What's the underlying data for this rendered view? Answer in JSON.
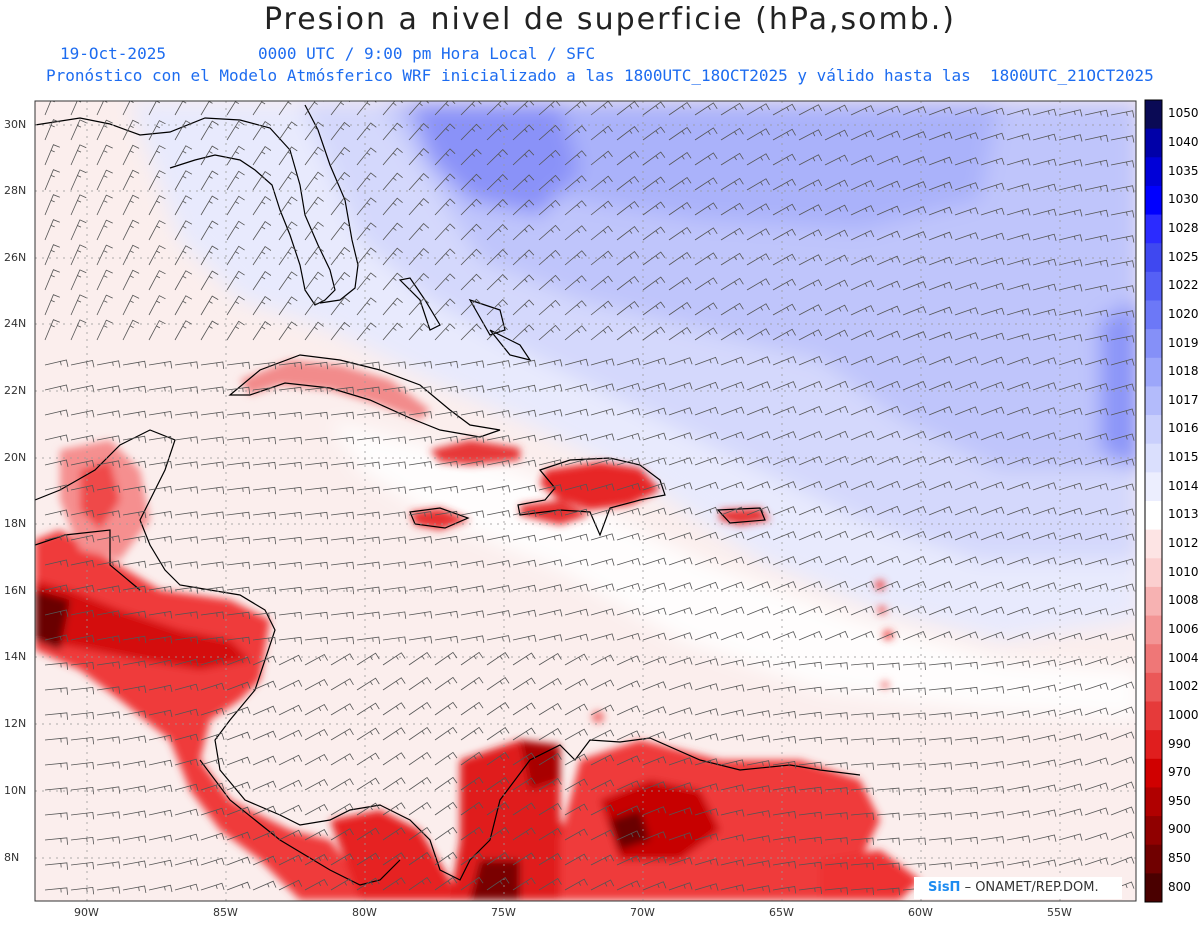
{
  "header": {
    "title": "Presion a nivel de superficie (hPa,somb.)",
    "date": "19-Oct-2025",
    "time": "0000 UTC / 9:00 pm Hora Local / SFC",
    "init_line": "Pronóstico con el Modelo Atmósferico WRF inicializado a las 1800UTC_18OCT2025 y válido hasta las  1800UTC_21OCT2025"
  },
  "map": {
    "lat_labels": [
      "30N",
      "28N",
      "26N",
      "24N",
      "22N",
      "20N",
      "18N",
      "16N",
      "14N",
      "12N",
      "10N",
      "8N"
    ],
    "lon_labels": [
      "90W",
      "85W",
      "80W",
      "75W",
      "70W",
      "65W",
      "60W",
      "55W"
    ],
    "colors": {
      "high": "#5a6ef5",
      "mid": "#e6e9fb",
      "neutral": "#fbeeed",
      "low": "#ee2222",
      "very_low": "#7a0000",
      "land_line": "#000000",
      "barb": "#555555"
    }
  },
  "colorbar": {
    "labels": [
      "1050",
      "1040",
      "1035",
      "1030",
      "1028",
      "1025",
      "1022",
      "1020",
      "1019",
      "1018",
      "1017",
      "1016",
      "1015",
      "1014",
      "1013",
      "1012",
      "1010",
      "1008",
      "1006",
      "1004",
      "1002",
      "1000",
      "990",
      "970",
      "950",
      "900",
      "850",
      "800"
    ],
    "colors": [
      "#0a0a55",
      "#0000a8",
      "#0000d8",
      "#0000ff",
      "#2b2bff",
      "#3f48f0",
      "#5560f5",
      "#6c78f7",
      "#8590f8",
      "#9ca6fa",
      "#b3bbfb",
      "#c9cffc",
      "#dadffd",
      "#eceefe",
      "#ffffff",
      "#fde4e4",
      "#fbcfcf",
      "#f7b2b2",
      "#f39595",
      "#ef7777",
      "#eb5858",
      "#e63a3a",
      "#e01e1e",
      "#d00000",
      "#b00000",
      "#900000",
      "#700000",
      "#4a0000"
    ]
  },
  "credit": {
    "logo": "SisΠ",
    "text": " – ONAMET/REP.DOM."
  }
}
